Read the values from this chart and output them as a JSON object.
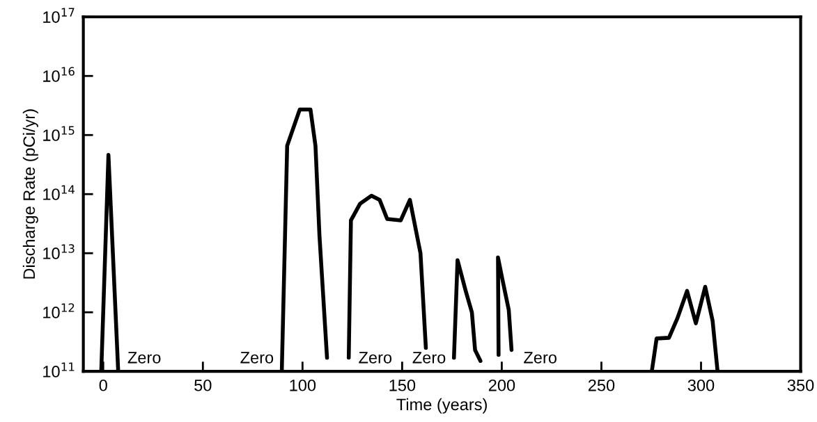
{
  "chart_data": {
    "type": "line",
    "xlabel": "Time (years)",
    "ylabel": "Discharge Rate (pCi/yr)",
    "log": "y",
    "grid": false,
    "legend": false,
    "marker": "none",
    "line_style": "solid",
    "xlim": [
      -10,
      350
    ],
    "xticks": [
      0,
      50,
      100,
      150,
      200,
      250,
      300,
      350
    ],
    "ylim": [
      100000000000.0,
      1e+17
    ],
    "yticks": [
      {
        "value": 100000000000.0,
        "label": "10$^{11}$"
      },
      {
        "value": 1000000000000.0,
        "label": "10$^{12}$"
      },
      {
        "value": 10000000000000.0,
        "label": "10$^{13}$"
      },
      {
        "value": 100000000000000.0,
        "label": "10$^{14}$"
      },
      {
        "value": 1000000000000000.0,
        "label": "10$^{15}$"
      },
      {
        "value": 1e+16,
        "label": "10$^{16}$"
      },
      {
        "value": 1e+17,
        "label": "10$^{17}$"
      }
    ],
    "series": [
      {
        "color": "#000000",
        "x": [
          -1,
          2.6,
          7.5,
          50,
          89.6,
          92.3,
          98.6,
          104,
          106.5,
          108.5,
          112.3,
          118,
          123.2,
          124.3,
          128.9,
          134.6,
          138.7,
          142.5,
          149.3,
          153.9,
          159.2,
          161.9,
          169,
          176.0,
          177.8,
          181.9,
          185.0,
          186.6,
          189.3,
          194,
          198.4,
          198.1,
          200.4,
          203.5,
          204.9,
          240,
          275.3,
          277.7,
          283.9,
          288.2,
          293.0,
          297.4,
          302.1,
          305.8,
          308.3
        ],
        "values": [
          100000000000.0,
          460000000000000.0,
          100000000000.0,
          null,
          100000000000.0,
          660000000000000.0,
          2700000000000000.0,
          2700000000000000.0,
          660000000000000.0,
          20000000000000.0,
          170000000000.0,
          null,
          170000000000.0,
          36000000000000.0,
          69000000000000.0,
          94000000000000.0,
          80000000000000.0,
          38000000000000.0,
          36000000000000.0,
          80000000000000.0,
          10000000000000.0,
          250000000000.0,
          null,
          170000000000.0,
          7600000000000.0,
          2300000000000.0,
          1000000000000.0,
          230000000000.0,
          150000000000.0,
          null,
          190000000000.0,
          8500000000000.0,
          3500000000000.0,
          1100000000000.0,
          230000000000.0,
          null,
          100000000000.0,
          360000000000.0,
          370000000000.0,
          800000000000.0,
          2300000000000.0,
          650000000000.0,
          2700000000000.0,
          720000000000.0,
          100000000000.0
        ]
      }
    ],
    "annotations": [
      "Zero",
      "Zero",
      "Zero",
      "Zero",
      "Zero"
    ]
  }
}
